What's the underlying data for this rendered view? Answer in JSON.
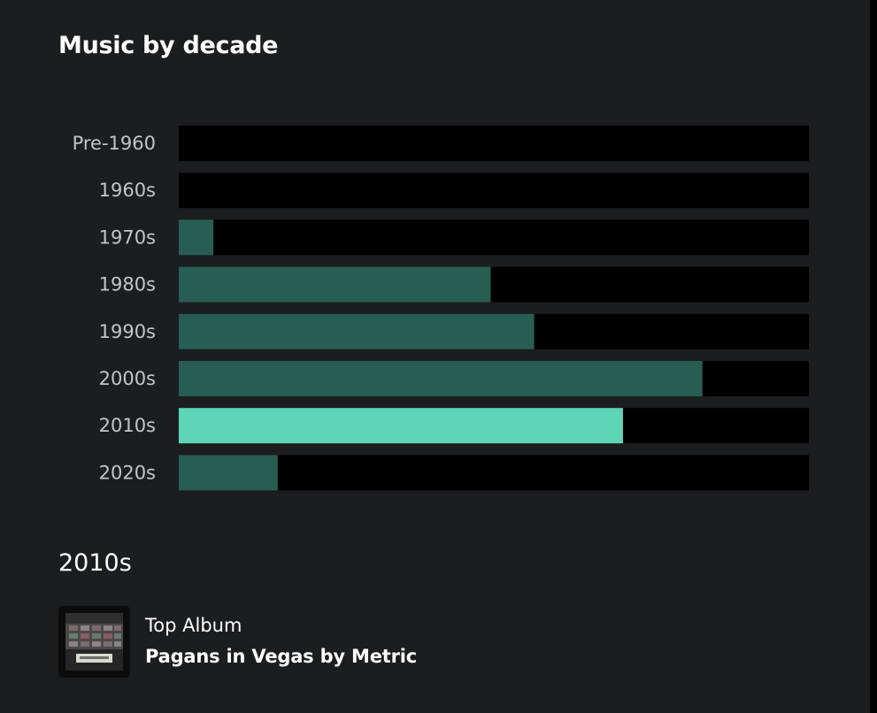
{
  "page": {
    "title": "Music by decade"
  },
  "chart_data": {
    "type": "bar",
    "orientation": "horizontal",
    "categories": [
      "Pre-1960",
      "1960s",
      "1970s",
      "1980s",
      "1990s",
      "2000s",
      "2010s",
      "2020s"
    ],
    "values": [
      0,
      0,
      5.5,
      49.5,
      56.4,
      83.1,
      70.5,
      15.7
    ],
    "xlim": [
      0,
      100
    ],
    "selected_category": "2010s",
    "grid": false,
    "legend": "none",
    "colors": {
      "bar": "#275e51",
      "bar_selected": "#5fd5b7",
      "track": "#000000",
      "label": "#c4c5c8"
    }
  },
  "detail": {
    "decade": "2010s",
    "top_album_label": "Top Album",
    "top_album": "Pagans in Vegas by Metric",
    "album_art_icon": "album-cover-icon"
  }
}
